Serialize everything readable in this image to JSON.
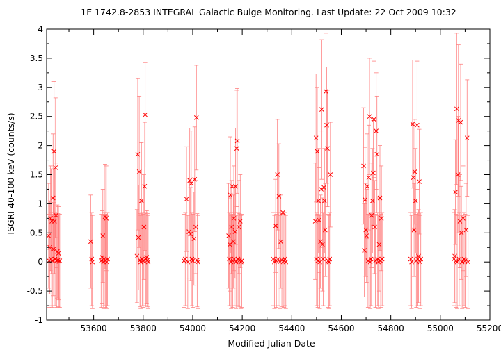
{
  "chart_data": {
    "type": "scatter",
    "title": "1E 1742.8-2853   INTEGRAL Galactic Bulge Monitoring.  Last Update: 22 Oct 2009 10:32",
    "xlabel": "Modified Julian Date",
    "ylabel": "ISGRI 40-100 keV (counts/s)",
    "xlim": [
      53410,
      55200
    ],
    "ylim": [
      -1,
      4
    ],
    "xticks": [
      "53600",
      "53800",
      "54000",
      "54200",
      "54400",
      "54600",
      "54800",
      "55000",
      "55200"
    ],
    "yticks": [
      "-1",
      "-0.5",
      "0",
      "0.5",
      "1",
      "1.5",
      "2",
      "2.5",
      "3",
      "3.5",
      "4"
    ],
    "grid": false,
    "legend": "none",
    "marker": "x",
    "color": "#ff0000",
    "errorbar_color": "#ff8080",
    "series": [
      {
        "points": [
          [
            53418,
            0.45,
            0.9
          ],
          [
            53420,
            0.02,
            0.8
          ],
          [
            53423,
            0.25,
            0.8
          ],
          [
            53426,
            0.75,
            0.9
          ],
          [
            53428,
            0.05,
            0.8
          ],
          [
            53431,
            0.7,
            0.9
          ],
          [
            53433,
            0.02,
            0.8
          ],
          [
            53436,
            1.1,
            1.1
          ],
          [
            53438,
            0.22,
            0.8
          ],
          [
            53440,
            1.9,
            1.2
          ],
          [
            53442,
            0.7,
            0.9
          ],
          [
            53444,
            0.05,
            0.8
          ],
          [
            53446,
            1.62,
            1.2
          ],
          [
            53448,
            0.8,
            0.9
          ],
          [
            53450,
            0.02,
            0.8
          ],
          [
            53453,
            0.18,
            0.8
          ],
          [
            53456,
            0.03,
            0.8
          ],
          [
            53458,
            0.15,
            0.8
          ],
          [
            53460,
            0.01,
            0.8
          ],
          [
            53463,
            0.02,
            0.8
          ],
          [
            53588,
            0.35,
            0.8
          ],
          [
            53592,
            0.05,
            0.8
          ],
          [
            53595,
            0.0,
            0.8
          ],
          [
            53630,
            0.02,
            0.8
          ],
          [
            53634,
            0.08,
            0.8
          ],
          [
            53637,
            0.45,
            0.8
          ],
          [
            53640,
            0.0,
            0.8
          ],
          [
            53643,
            0.05,
            0.8
          ],
          [
            53646,
            0.78,
            0.9
          ],
          [
            53648,
            0.02,
            0.8
          ],
          [
            53651,
            0.75,
            0.9
          ],
          [
            53653,
            0.0,
            0.8
          ],
          [
            53656,
            0.05,
            0.8
          ],
          [
            53775,
            0.1,
            0.8
          ],
          [
            53778,
            1.85,
            1.3
          ],
          [
            53781,
            0.42,
            0.9
          ],
          [
            53784,
            1.55,
            1.3
          ],
          [
            53787,
            0.03,
            0.8
          ],
          [
            53790,
            0.0,
            0.8
          ],
          [
            53793,
            1.05,
            1.0
          ],
          [
            53796,
            0.05,
            0.8
          ],
          [
            53800,
            0.02,
            0.8
          ],
          [
            53803,
            0.6,
            0.9
          ],
          [
            53806,
            1.3,
            1.1
          ],
          [
            53808,
            2.53,
            0.9
          ],
          [
            53811,
            0.05,
            0.8
          ],
          [
            53814,
            0.08,
            0.8
          ],
          [
            53817,
            0.03,
            0.8
          ],
          [
            53820,
            0.0,
            0.8
          ],
          [
            53965,
            0.02,
            0.8
          ],
          [
            53970,
            0.05,
            0.8
          ],
          [
            53975,
            1.08,
            0.9
          ],
          [
            53980,
            0.0,
            0.8
          ],
          [
            53985,
            0.52,
            0.8
          ],
          [
            53988,
            1.4,
            0.9
          ],
          [
            53991,
            0.48,
            0.8
          ],
          [
            53994,
            1.35,
            0.9
          ],
          [
            53997,
            0.05,
            0.8
          ],
          [
            54000,
            0.02,
            0.8
          ],
          [
            54005,
            0.4,
            0.8
          ],
          [
            54008,
            1.42,
            0.9
          ],
          [
            54012,
            0.6,
            0.8
          ],
          [
            54015,
            2.48,
            0.9
          ],
          [
            54018,
            0.03,
            0.8
          ],
          [
            54021,
            0.0,
            0.8
          ],
          [
            54145,
            0.45,
            0.9
          ],
          [
            54148,
            0.05,
            0.8
          ],
          [
            54150,
            0.3,
            0.8
          ],
          [
            54152,
            1.15,
            1.0
          ],
          [
            54155,
            0.0,
            0.8
          ],
          [
            54157,
            0.6,
            0.8
          ],
          [
            54159,
            1.3,
            1.0
          ],
          [
            54162,
            0.02,
            0.8
          ],
          [
            54164,
            0.35,
            0.8
          ],
          [
            54166,
            0.75,
            0.9
          ],
          [
            54168,
            0.05,
            0.8
          ],
          [
            54171,
            0.52,
            0.8
          ],
          [
            54173,
            1.3,
            1.0
          ],
          [
            54175,
            0.0,
            0.8
          ],
          [
            54178,
            1.95,
            1.0
          ],
          [
            54180,
            2.08,
            0.9
          ],
          [
            54183,
            0.05,
            0.8
          ],
          [
            54186,
            0.6,
            0.8
          ],
          [
            54189,
            0.03,
            0.8
          ],
          [
            54192,
            0.7,
            0.8
          ],
          [
            54195,
            0.0,
            0.8
          ],
          [
            54198,
            0.02,
            0.8
          ],
          [
            54325,
            0.05,
            0.8
          ],
          [
            54330,
            0.0,
            0.8
          ],
          [
            54335,
            0.62,
            0.8
          ],
          [
            54338,
            0.02,
            0.8
          ],
          [
            54342,
            1.5,
            0.95
          ],
          [
            54345,
            0.05,
            0.8
          ],
          [
            54348,
            1.13,
            0.9
          ],
          [
            54352,
            0.0,
            0.8
          ],
          [
            54356,
            0.35,
            0.8
          ],
          [
            54360,
            0.03,
            0.8
          ],
          [
            54364,
            0.85,
            0.9
          ],
          [
            54368,
            0.02,
            0.8
          ],
          [
            54372,
            0.05,
            0.8
          ],
          [
            54376,
            0.0,
            0.8
          ],
          [
            54495,
            0.7,
            1.0
          ],
          [
            54498,
            2.13,
            1.1
          ],
          [
            54500,
            0.05,
            0.8
          ],
          [
            54503,
            1.9,
            1.1
          ],
          [
            54505,
            0.02,
            0.8
          ],
          [
            54508,
            1.05,
            0.9
          ],
          [
            54510,
            0.72,
            0.9
          ],
          [
            54513,
            0.0,
            0.8
          ],
          [
            54516,
            0.35,
            0.8
          ],
          [
            54519,
            1.25,
            1.0
          ],
          [
            54521,
            2.62,
            1.2
          ],
          [
            54524,
            0.3,
            0.8
          ],
          [
            54527,
            0.05,
            0.8
          ],
          [
            54530,
            1.28,
            0.9
          ],
          [
            54532,
            1.05,
            0.9
          ],
          [
            54535,
            0.55,
            0.8
          ],
          [
            54538,
            2.93,
            1.0
          ],
          [
            54541,
            2.35,
            1.0
          ],
          [
            54544,
            1.95,
            1.0
          ],
          [
            54547,
            0.02,
            0.8
          ],
          [
            54550,
            0.0,
            0.8
          ],
          [
            54553,
            0.05,
            0.8
          ],
          [
            54556,
            1.5,
            0.9
          ],
          [
            54690,
            1.65,
            1.0
          ],
          [
            54693,
            0.2,
            0.8
          ],
          [
            54696,
            1.07,
            0.9
          ],
          [
            54699,
            0.55,
            0.8
          ],
          [
            54702,
            0.45,
            0.8
          ],
          [
            54705,
            1.3,
            0.9
          ],
          [
            54708,
            0.02,
            0.8
          ],
          [
            54711,
            1.45,
            0.9
          ],
          [
            54714,
            2.5,
            1.0
          ],
          [
            54717,
            0.0,
            0.8
          ],
          [
            54720,
            0.05,
            0.8
          ],
          [
            54723,
            0.8,
            0.9
          ],
          [
            54726,
            1.05,
            0.9
          ],
          [
            54729,
            1.53,
            0.9
          ],
          [
            54732,
            2.45,
            1.0
          ],
          [
            54735,
            0.6,
            0.8
          ],
          [
            54738,
            0.02,
            0.8
          ],
          [
            54741,
            2.25,
            1.0
          ],
          [
            54744,
            1.85,
            1.0
          ],
          [
            54747,
            0.05,
            0.8
          ],
          [
            54750,
            0.0,
            0.8
          ],
          [
            54753,
            0.3,
            0.8
          ],
          [
            54756,
            1.1,
            0.9
          ],
          [
            54759,
            0.02,
            0.8
          ],
          [
            54762,
            0.75,
            0.9
          ],
          [
            54765,
            0.05,
            0.8
          ],
          [
            54880,
            0.05,
            0.8
          ],
          [
            54884,
            0.0,
            0.8
          ],
          [
            54888,
            2.37,
            1.1
          ],
          [
            54891,
            1.45,
            0.9
          ],
          [
            54894,
            0.55,
            0.8
          ],
          [
            54897,
            1.55,
            0.9
          ],
          [
            54900,
            1.05,
            0.9
          ],
          [
            54903,
            0.02,
            0.8
          ],
          [
            54906,
            2.35,
            1.1
          ],
          [
            54909,
            0.05,
            0.8
          ],
          [
            54912,
            0.1,
            0.8
          ],
          [
            54915,
            1.38,
            0.9
          ],
          [
            54918,
            0.0,
            0.8
          ],
          [
            54921,
            0.05,
            0.8
          ],
          [
            55055,
            0.05,
            0.8
          ],
          [
            55058,
            0.1,
            0.8
          ],
          [
            55061,
            1.2,
            0.9
          ],
          [
            55063,
            0.02,
            0.8
          ],
          [
            55066,
            2.63,
            1.3
          ],
          [
            55068,
            0.0,
            0.8
          ],
          [
            55071,
            1.5,
            1.0
          ],
          [
            55073,
            2.43,
            1.3
          ],
          [
            55076,
            0.05,
            0.8
          ],
          [
            55079,
            0.7,
            0.8
          ],
          [
            55082,
            2.4,
            1.0
          ],
          [
            55085,
            0.5,
            0.8
          ],
          [
            55088,
            0.0,
            0.8
          ],
          [
            55092,
            0.75,
            0.9
          ],
          [
            55096,
            0.05,
            0.8
          ],
          [
            55100,
            0.02,
            0.8
          ],
          [
            55104,
            0.55,
            0.8
          ],
          [
            55108,
            2.13,
            1.0
          ],
          [
            55112,
            0.0,
            0.8
          ]
        ]
      }
    ]
  }
}
